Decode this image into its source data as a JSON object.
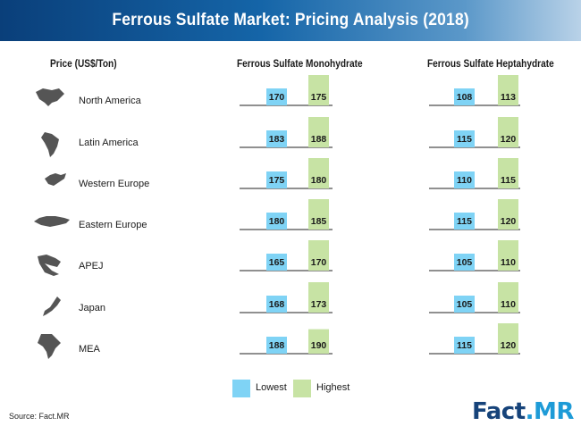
{
  "title": "Ferrous Sulfate Market: Pricing Analysis (2018)",
  "headers": {
    "price": "Price (US$/Ton)",
    "monohydrate": "Ferrous Sulfate Monohydrate",
    "heptahydrate": "Ferrous Sulfate Heptahydrate"
  },
  "legend": {
    "lowest": "Lowest",
    "highest": "Highest"
  },
  "source": "Source: Fact.MR",
  "logo": {
    "fact": "Fact",
    "dot": ".",
    "mr": "MR"
  },
  "colors": {
    "lowest": "#7fd3f5",
    "highest": "#c7e3a4",
    "header": "#1565a8"
  },
  "regions": [
    {
      "name": "North America",
      "icon": "north-america-map-icon"
    },
    {
      "name": "Latin America",
      "icon": "latin-america-map-icon"
    },
    {
      "name": "Western Europe",
      "icon": "western-europe-map-icon"
    },
    {
      "name": "Eastern Europe",
      "icon": "eastern-europe-map-icon"
    },
    {
      "name": "APEJ",
      "icon": "apej-map-icon"
    },
    {
      "name": "Japan",
      "icon": "japan-map-icon"
    },
    {
      "name": "MEA",
      "icon": "mea-map-icon"
    }
  ],
  "chart_data": {
    "type": "bar",
    "title": "Ferrous Sulfate Market: Pricing Analysis (2018)",
    "ylabel": "Price (US$/Ton)",
    "categories": [
      "North America",
      "Latin America",
      "Western Europe",
      "Eastern Europe",
      "APEJ",
      "Japan",
      "MEA"
    ],
    "groups": [
      {
        "name": "Ferrous Sulfate Monohydrate",
        "series": [
          {
            "name": "Lowest",
            "values": [
              170,
              183,
              175,
              180,
              165,
              168,
              188
            ]
          },
          {
            "name": "Highest",
            "values": [
              175,
              188,
              180,
              185,
              170,
              173,
              190
            ]
          }
        ]
      },
      {
        "name": "Ferrous Sulfate Heptahydrate",
        "series": [
          {
            "name": "Lowest",
            "values": [
              108,
              115,
              110,
              115,
              105,
              105,
              115
            ]
          },
          {
            "name": "Highest",
            "values": [
              113,
              120,
              115,
              120,
              110,
              110,
              120
            ]
          }
        ]
      }
    ]
  }
}
